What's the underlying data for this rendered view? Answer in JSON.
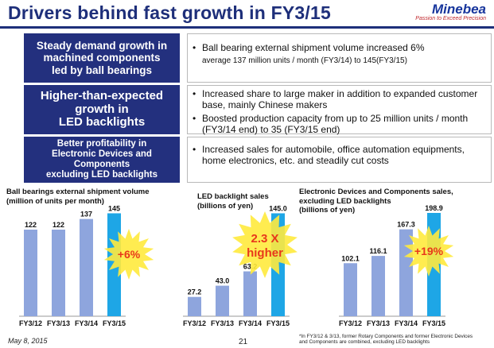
{
  "header": {
    "title": "Drivers behind fast growth in FY3/15",
    "logo_name": "Minebea",
    "logo_tagline": "Passion to Exceed Precision"
  },
  "drivers": [
    {
      "label_lines": [
        "Steady demand growth in",
        "machined components",
        "led by ball bearings"
      ],
      "bullets": [
        "Ball bearing external shipment volume increased 6%"
      ],
      "sub": "average 137 million units / month (FY3/14) to 145(FY3/15)"
    },
    {
      "label_lines": [
        "Higher-than-expected",
        "growth in",
        "LED backlights"
      ],
      "bullets": [
        "Increased share to large maker in addition to expanded customer base, mainly Chinese makers",
        "Boosted production capacity from up to 25 million units / month (FY3/14 end) to 35 (FY3/15 end)"
      ],
      "sub": ""
    },
    {
      "label_lines": [
        "Better profitability in",
        "Electronic Devices and",
        "Components",
        "excluding LED backlights"
      ],
      "bullets": [
        "Increased sales for automobile, office automation equipments, home electronics, etc. and steadily cut costs"
      ],
      "sub": ""
    }
  ],
  "colors": {
    "navy": "#23307e",
    "bar": "#8ea5dd",
    "bar_highlight": "#1ea6e6",
    "burst": "#ffea3d",
    "burst_text": "#e8381b"
  },
  "chart_data": [
    {
      "type": "bar",
      "title_lines": [
        "Ball bearings external shipment volume",
        "(million of units  per month)"
      ],
      "categories": [
        "FY3/12",
        "FY3/13",
        "FY3/14",
        "FY3/15"
      ],
      "values": [
        122,
        122,
        137,
        145
      ],
      "value_labels": [
        "122",
        "122",
        "137",
        "145"
      ],
      "highlight_index": 3,
      "ylim": [
        0,
        150
      ],
      "callout": "+6%"
    },
    {
      "type": "bar",
      "title_lines": [
        "LED backlight sales",
        "(billions of yen)"
      ],
      "categories": [
        "FY3/12",
        "FY3/13",
        "FY3/14",
        "FY3/15"
      ],
      "values": [
        27.2,
        43.0,
        63.2,
        145.0
      ],
      "value_labels": [
        "27.2",
        "43.0",
        "63.2",
        "145.0"
      ],
      "highlight_index": 3,
      "ylim": [
        0,
        150
      ],
      "callout_lines": [
        "2.3 X",
        "higher"
      ]
    },
    {
      "type": "bar",
      "title_lines": [
        "Electronic Devices and Components sales,",
        "excluding LED backlights",
        "(billions of yen)"
      ],
      "categories": [
        "FY3/12",
        "FY3/13",
        "FY3/14",
        "FY3/15"
      ],
      "values": [
        102.1,
        116.1,
        167.3,
        198.9
      ],
      "value_labels": [
        "102.1",
        "116.1",
        "167.3",
        "198.9"
      ],
      "highlight_index": 3,
      "ylim": [
        0,
        205
      ],
      "callout": "+19%"
    }
  ],
  "footer": {
    "date": "May 8, 2015",
    "page": "21",
    "footnote": "*In FY3/12 & 3/13, former Rotary Components and former Electronic Devices and Components are combined, excluding LED backlights"
  }
}
